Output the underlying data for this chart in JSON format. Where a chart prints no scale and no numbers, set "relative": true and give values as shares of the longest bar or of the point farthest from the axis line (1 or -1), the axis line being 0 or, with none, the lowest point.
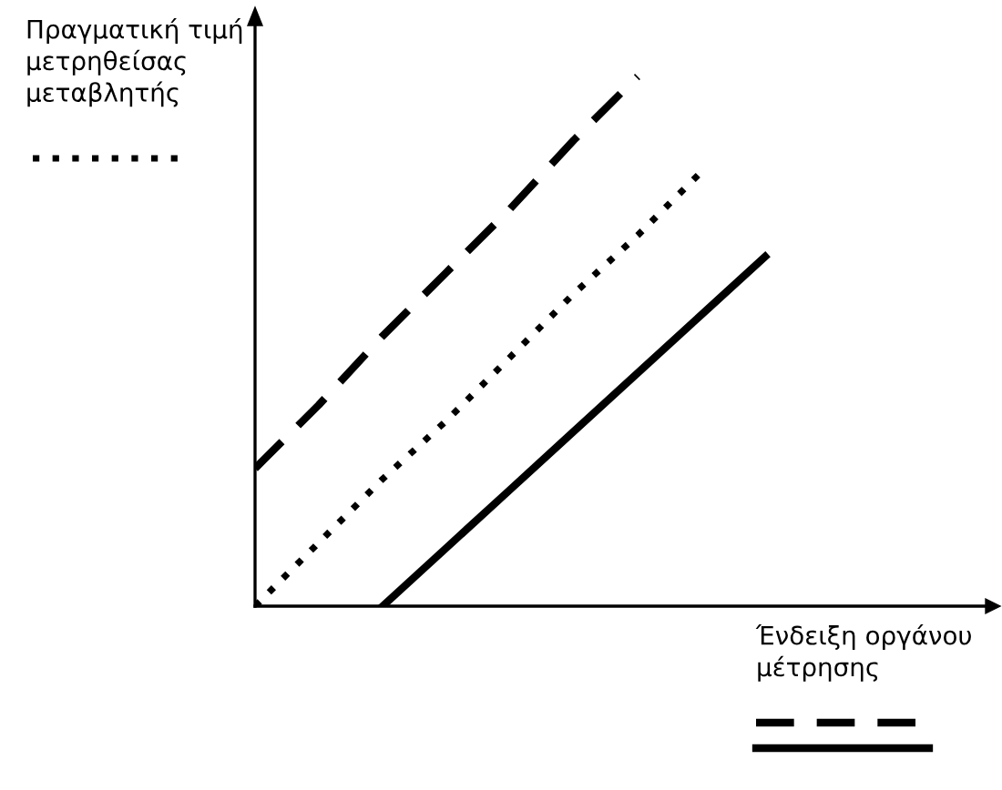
{
  "chart_data": {
    "type": "line",
    "relative": true,
    "xlabel": "Ένδειξη οργάνου\nμέτρησης",
    "ylabel": "Πραγματική τιμή\nμετρηθείσας\nμεταβλητής",
    "categories": [
      null,
      null,
      null,
      null,
      null,
      null,
      null,
      null,
      null,
      null,
      null,
      null
    ],
    "series": [
      {
        "color": "#000000",
        "line_style": "dashed",
        "values": [
          0.26,
          0.38,
          0.51,
          0.63,
          0.75,
          0.88,
          1.0,
          null,
          null,
          null,
          null,
          null
        ]
      },
      {
        "color": "#000000",
        "line_style": "dotted",
        "values": [
          0.0,
          0.12,
          0.24,
          0.35,
          0.47,
          0.59,
          0.7,
          0.82,
          null,
          null,
          null,
          null
        ]
      },
      {
        "color": "#000000",
        "line_style": "solid",
        "values": [
          null,
          null,
          0.0,
          0.11,
          0.22,
          0.33,
          0.44,
          0.55,
          0.66,
          null,
          null,
          null
        ]
      }
    ],
    "marker": "none"
  }
}
